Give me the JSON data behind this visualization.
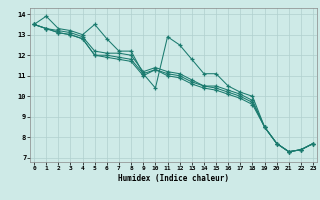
{
  "xlabel": "Humidex (Indice chaleur)",
  "background_color": "#ceeae7",
  "line_color": "#1a7a6e",
  "grid_color": "#b0d0ce",
  "xlim": [
    -0.3,
    23.3
  ],
  "ylim": [
    6.8,
    14.3
  ],
  "x": [
    0,
    1,
    2,
    3,
    4,
    5,
    6,
    7,
    8,
    9,
    10,
    11,
    12,
    13,
    14,
    15,
    16,
    17,
    18,
    19,
    20,
    21,
    22,
    23
  ],
  "line1": [
    13.5,
    13.9,
    13.3,
    13.2,
    13.0,
    13.5,
    12.8,
    12.2,
    12.2,
    11.1,
    10.4,
    12.9,
    12.5,
    11.8,
    11.1,
    11.1,
    10.5,
    10.2,
    10.0,
    8.5,
    7.7,
    7.3,
    7.4,
    7.7
  ],
  "line2": [
    13.5,
    13.3,
    13.2,
    13.1,
    12.9,
    12.2,
    12.1,
    12.1,
    12.0,
    11.2,
    11.4,
    11.2,
    11.1,
    10.8,
    10.5,
    10.5,
    10.3,
    10.1,
    9.8,
    8.5,
    7.7,
    7.3,
    7.4,
    7.7
  ],
  "line3": [
    13.5,
    13.3,
    13.1,
    13.0,
    12.8,
    12.0,
    12.0,
    11.9,
    11.8,
    11.1,
    11.3,
    11.1,
    11.0,
    10.7,
    10.5,
    10.4,
    10.2,
    10.0,
    9.7,
    8.5,
    7.7,
    7.3,
    7.4,
    7.7
  ],
  "line4": [
    13.5,
    13.3,
    13.1,
    13.0,
    12.8,
    12.0,
    11.9,
    11.8,
    11.7,
    11.0,
    11.3,
    11.0,
    10.9,
    10.6,
    10.4,
    10.3,
    10.1,
    9.9,
    9.6,
    8.5,
    7.7,
    7.3,
    7.4,
    7.7
  ],
  "yticks": [
    7,
    8,
    9,
    10,
    11,
    12,
    13,
    14
  ],
  "xticks": [
    0,
    1,
    2,
    3,
    4,
    5,
    6,
    7,
    8,
    9,
    10,
    11,
    12,
    13,
    14,
    15,
    16,
    17,
    18,
    19,
    20,
    21,
    22,
    23
  ]
}
